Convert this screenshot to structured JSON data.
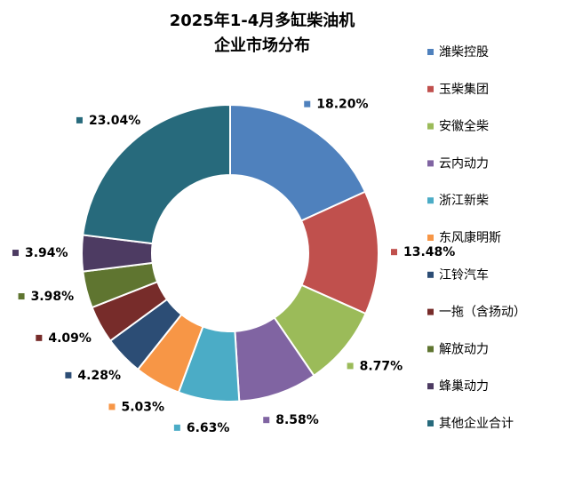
{
  "chart_data": {
    "type": "donut",
    "title": [
      "2025年1-4月多缸柴油机",
      "企业市场分布"
    ],
    "categories": [
      "潍柴控股",
      "玉柴集团",
      "安徽全柴",
      "云内动力",
      "浙江新柴",
      "东风康明斯",
      "江铃汽车",
      "一拖（含扬动）",
      "解放动力",
      "蜂巢动力",
      "其他企业合计"
    ],
    "values": [
      18.2,
      13.48,
      8.77,
      8.58,
      6.63,
      5.03,
      4.28,
      4.09,
      3.98,
      3.94,
      23.04
    ],
    "value_labels": [
      "18.20%",
      "13.48%",
      "8.77%",
      "8.58%",
      "6.63%",
      "5.03%",
      "4.28%",
      "4.09%",
      "3.98%",
      "3.94%",
      "23.04%"
    ],
    "colors": [
      "#4F81BD",
      "#C0504D",
      "#9BBB59",
      "#8064A2",
      "#4BACC6",
      "#F79646",
      "#2C4D75",
      "#772C2A",
      "#5F7530",
      "#4D3B62",
      "#276A7C"
    ],
    "legend": "right"
  }
}
